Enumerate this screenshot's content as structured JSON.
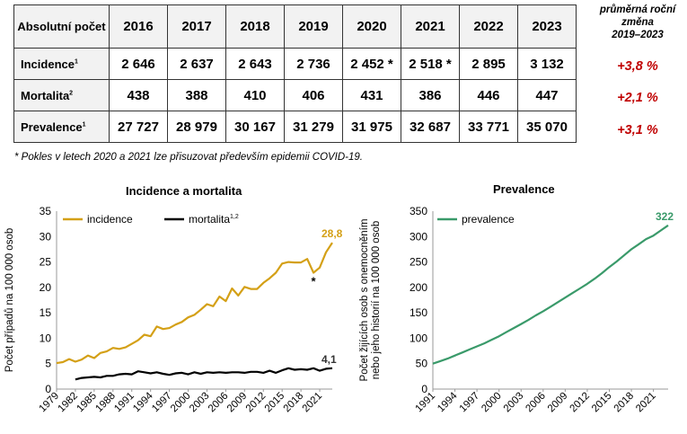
{
  "table": {
    "corner": "Absolutní počet",
    "years": [
      "2016",
      "2017",
      "2018",
      "2019",
      "2020",
      "2021",
      "2022",
      "2023"
    ],
    "rows": [
      {
        "label": "Incidence",
        "sup": "1",
        "values": [
          "2 646",
          "2 637",
          "2 643",
          "2 736",
          "2 452 *",
          "2 518 *",
          "2 895",
          "3 132"
        ],
        "avg": "+3,8 %"
      },
      {
        "label": "Mortalita",
        "sup": "2",
        "values": [
          "438",
          "388",
          "410",
          "406",
          "431",
          "386",
          "446",
          "447"
        ],
        "avg": "+2,1 %"
      },
      {
        "label": "Prevalence",
        "sup": "1",
        "values": [
          "27 727",
          "28 979",
          "30 167",
          "31 279",
          "31 975",
          "32 687",
          "33 771",
          "35 070"
        ],
        "avg": "+3,1 %"
      }
    ],
    "avg_header": [
      "průměrná roční",
      "změna",
      "2019–2023"
    ],
    "avg_color": "#c00000"
  },
  "footnote": "* Pokles v letech 2020 a 2021 lze přisuzovat především epidemii COVID-19.",
  "chart_data": [
    {
      "type": "line",
      "title": "Incidence a mortalita",
      "ylabel": "Počet případů na 100 000 osob",
      "xlabel": "",
      "ylim": [
        0,
        35
      ],
      "yticks": [
        0,
        5,
        10,
        15,
        20,
        25,
        30,
        35
      ],
      "xlim": [
        1979,
        2023
      ],
      "xticks": [
        "1979",
        "1982",
        "1985",
        "1988",
        "1991",
        "1994",
        "1997",
        "2000",
        "2003",
        "2006",
        "2009",
        "2012",
        "2015",
        "2018",
        "2021"
      ],
      "grid": false,
      "legend_position": "top",
      "series": [
        {
          "name": "incidence",
          "color": "#d4a017",
          "x": [
            1979,
            1980,
            1981,
            1982,
            1983,
            1984,
            1985,
            1986,
            1987,
            1988,
            1989,
            1990,
            1991,
            1992,
            1993,
            1994,
            1995,
            1996,
            1997,
            1998,
            1999,
            2000,
            2001,
            2002,
            2003,
            2004,
            2005,
            2006,
            2007,
            2008,
            2009,
            2010,
            2011,
            2012,
            2013,
            2014,
            2015,
            2016,
            2017,
            2018,
            2019,
            2020,
            2021,
            2022,
            2023
          ],
          "y": [
            5.1,
            5.3,
            5.9,
            5.4,
            5.8,
            6.6,
            6.1,
            7.1,
            7.4,
            8.1,
            7.9,
            8.2,
            8.9,
            9.6,
            10.7,
            10.4,
            12.3,
            11.8,
            12.0,
            12.7,
            13.2,
            14.1,
            14.6,
            15.6,
            16.7,
            16.3,
            18.2,
            17.3,
            19.8,
            18.4,
            20.1,
            19.7,
            19.7,
            20.9,
            21.8,
            22.9,
            24.7,
            25.0,
            24.9,
            24.9,
            25.6,
            22.9,
            23.9,
            26.9,
            28.8
          ]
        },
        {
          "name": "mortalita",
          "sup": "1,2",
          "color": "#000000",
          "x": [
            1982,
            1983,
            1984,
            1985,
            1986,
            1987,
            1988,
            1989,
            1990,
            1991,
            1992,
            1993,
            1994,
            1995,
            1996,
            1997,
            1998,
            1999,
            2000,
            2001,
            2002,
            2003,
            2004,
            2005,
            2006,
            2007,
            2008,
            2009,
            2010,
            2011,
            2012,
            2013,
            2014,
            2015,
            2016,
            2017,
            2018,
            2019,
            2020,
            2021,
            2022,
            2023
          ],
          "y": [
            1.9,
            2.2,
            2.3,
            2.4,
            2.3,
            2.6,
            2.6,
            2.9,
            3.0,
            2.9,
            3.5,
            3.3,
            3.1,
            3.3,
            3.0,
            2.8,
            3.1,
            3.2,
            2.9,
            3.3,
            3.0,
            3.3,
            3.2,
            3.3,
            3.2,
            3.3,
            3.3,
            3.2,
            3.4,
            3.4,
            3.2,
            3.6,
            3.2,
            3.7,
            4.1,
            3.8,
            3.9,
            3.8,
            4.1,
            3.6,
            4.0,
            4.1
          ]
        }
      ],
      "annotations": [
        {
          "text": "28,8",
          "series": "incidence"
        },
        {
          "text": "4,1",
          "series": "mortalita"
        },
        {
          "text": "*",
          "x": 2020,
          "y": 22.9
        }
      ]
    },
    {
      "type": "line",
      "title": "Prevalence",
      "ylabel": "Počet žijících osob s onemocněním nebo jeho historií na 100 000 osob",
      "xlabel": "",
      "ylim": [
        0,
        350
      ],
      "yticks": [
        0,
        50,
        100,
        150,
        200,
        250,
        300,
        350
      ],
      "xlim": [
        1991,
        2023
      ],
      "xticks": [
        "1991",
        "1994",
        "1997",
        "2000",
        "2003",
        "2006",
        "2009",
        "2012",
        "2015",
        "2018",
        "2021"
      ],
      "grid": false,
      "legend_position": "top",
      "series": [
        {
          "name": "prevalence",
          "color": "#3a9a6a",
          "x": [
            1991,
            1992,
            1993,
            1994,
            1995,
            1996,
            1997,
            1998,
            1999,
            2000,
            2001,
            2002,
            2003,
            2004,
            2005,
            2006,
            2007,
            2008,
            2009,
            2010,
            2011,
            2012,
            2013,
            2014,
            2015,
            2016,
            2017,
            2018,
            2019,
            2020,
            2021,
            2022,
            2023
          ],
          "y": [
            50,
            55,
            60,
            66,
            72,
            78,
            84,
            90,
            97,
            104,
            112,
            120,
            128,
            136,
            145,
            153,
            162,
            171,
            180,
            189,
            198,
            207,
            217,
            228,
            240,
            251,
            263,
            275,
            285,
            295,
            302,
            312,
            322
          ]
        }
      ],
      "annotations": [
        {
          "text": "322",
          "series": "prevalence"
        }
      ]
    }
  ]
}
